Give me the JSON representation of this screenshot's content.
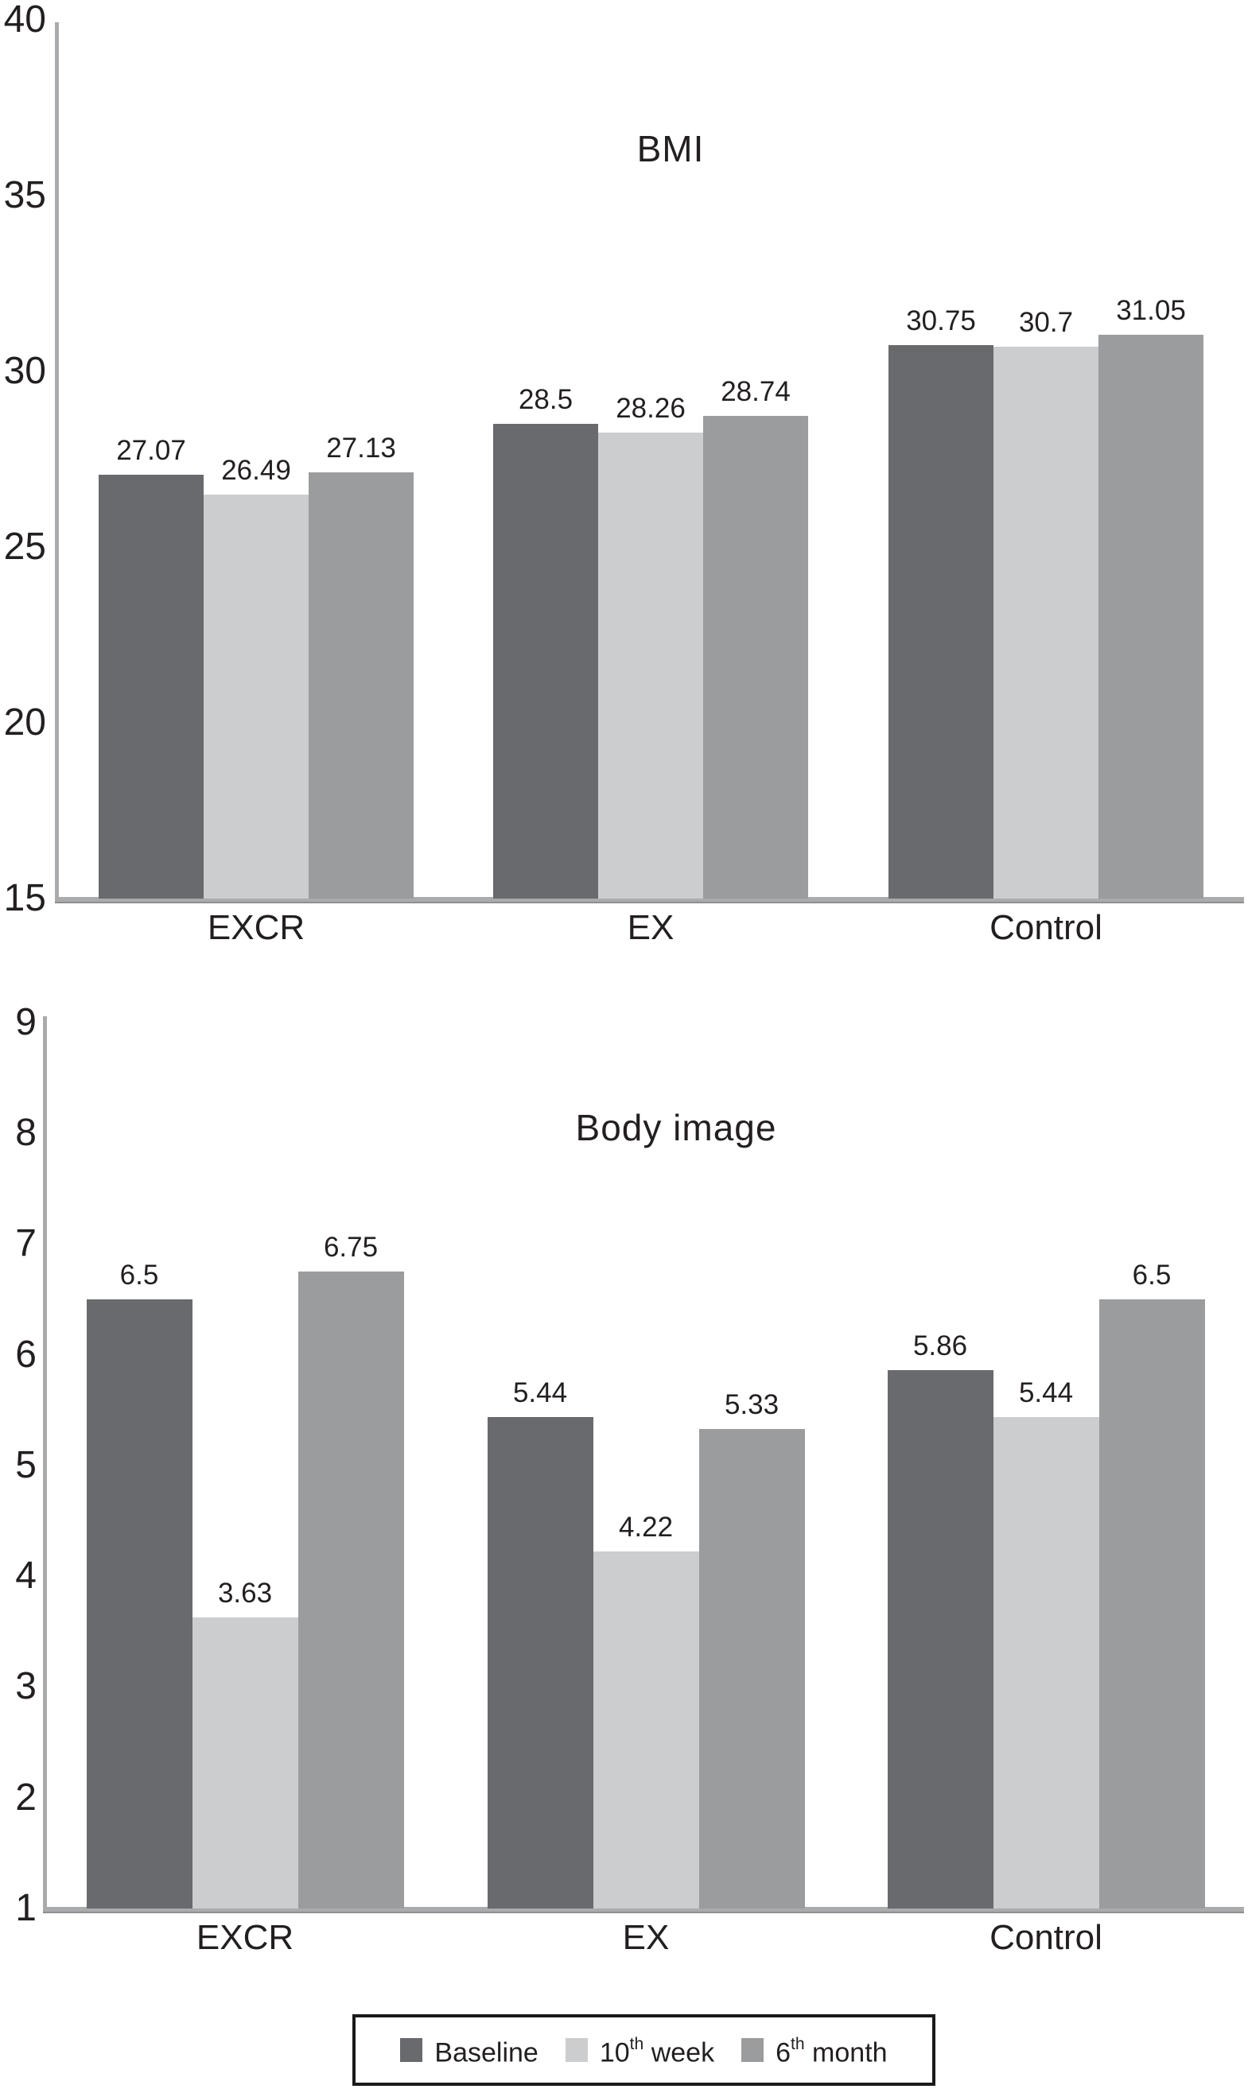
{
  "colors": {
    "series": [
      "#696a6d",
      "#cbcdce",
      "#9a9c9e"
    ],
    "axis": "#a9abad",
    "text": "#231f20",
    "legend_border": "#1a1a1a"
  },
  "chart_data": [
    {
      "type": "bar",
      "title": "BMI",
      "categories": [
        "EXCR",
        "EX",
        "Control"
      ],
      "series": [
        {
          "name": "Baseline",
          "values": [
            27.07,
            28.5,
            30.75
          ]
        },
        {
          "name": "10th week",
          "values": [
            26.49,
            28.26,
            30.7
          ]
        },
        {
          "name": "6th month",
          "values": [
            27.13,
            28.74,
            31.05
          ]
        }
      ],
      "ylim": [
        15,
        40
      ],
      "yticks": [
        40,
        35,
        30,
        25,
        20,
        15
      ],
      "grid": false,
      "value_labels_shown": true,
      "legend_position": "shared-bottom"
    },
    {
      "type": "bar",
      "title": "Body image",
      "categories": [
        "EXCR",
        "EX",
        "Control"
      ],
      "series": [
        {
          "name": "Baseline",
          "values": [
            6.5,
            5.44,
            5.86
          ]
        },
        {
          "name": "10th week",
          "values": [
            3.63,
            4.22,
            5.44
          ]
        },
        {
          "name": "6th month",
          "values": [
            6.75,
            5.33,
            6.5
          ]
        }
      ],
      "ylim": [
        1,
        9
      ],
      "yticks": [
        9,
        8,
        7,
        6,
        5,
        4,
        3,
        2,
        1
      ],
      "grid": false,
      "value_labels_shown": true,
      "legend_position": "shared-bottom"
    }
  ],
  "legend": {
    "items": [
      {
        "pre": "Baseline",
        "sup": "",
        "post": ""
      },
      {
        "pre": "10",
        "sup": "th",
        "post": " week"
      },
      {
        "pre": "6",
        "sup": "th",
        "post": " month"
      }
    ]
  }
}
